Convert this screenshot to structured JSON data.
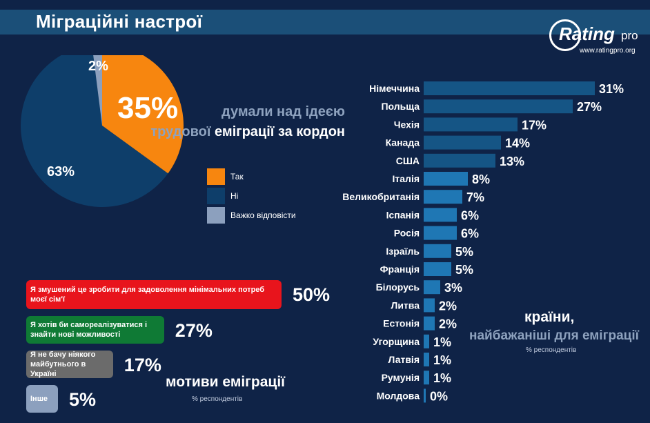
{
  "header": {
    "title": "Міграційні настрої",
    "logo_word": "Rating",
    "logo_pro": "pro",
    "logo_url": "www.ratingpro.org"
  },
  "pie_title": {
    "big_value": "35%",
    "line1": "думали над ідеєю",
    "line2_dim": "трудової",
    "line2_rest": " еміграції за кордон"
  },
  "chart_data": [
    {
      "type": "pie",
      "slices": [
        {
          "label": "Так",
          "value": 35,
          "color": "#f7860f"
        },
        {
          "label": "Ні",
          "value": 63,
          "color": "#0e3e6a"
        },
        {
          "label": "Важко відповісти",
          "value": 2,
          "color": "#8ca0be"
        }
      ]
    },
    {
      "type": "bar",
      "orientation": "horizontal",
      "title": "мотиви еміграції",
      "note": "% респондентів",
      "categories": [
        "Я змушений це зробити для задоволення мінімальних потреб моєї сім'ї",
        "Я хотів би самореалізуватися і знайти нові можливості",
        "Я не бачу ніякого майбутнього в Україні",
        "Інше"
      ],
      "values": [
        50,
        27,
        17,
        5
      ],
      "colors": [
        "#e8141c",
        "#0f7a35",
        "#6b6b6b",
        "#8ca0be"
      ]
    },
    {
      "type": "bar",
      "orientation": "horizontal",
      "title": "країни,",
      "subtitle": "найбажаніші для еміграції",
      "note": "% респондентів",
      "categories": [
        "Німеччина",
        "Польща",
        "Чехія",
        "Канада",
        "США",
        "Італія",
        "Великобританія",
        "Іспанія",
        "Росія",
        "Ізраїль",
        "Франція",
        "Білорусь",
        "Литва",
        "Естонія",
        "Угорщина",
        "Латвія",
        "Румунія",
        "Молдова"
      ],
      "values": [
        31,
        27,
        17,
        14,
        13,
        8,
        7,
        6,
        6,
        5,
        5,
        3,
        2,
        2,
        1,
        1,
        1,
        0
      ],
      "colors": {
        "large": "#155585",
        "small": "#1f77b4"
      }
    }
  ]
}
